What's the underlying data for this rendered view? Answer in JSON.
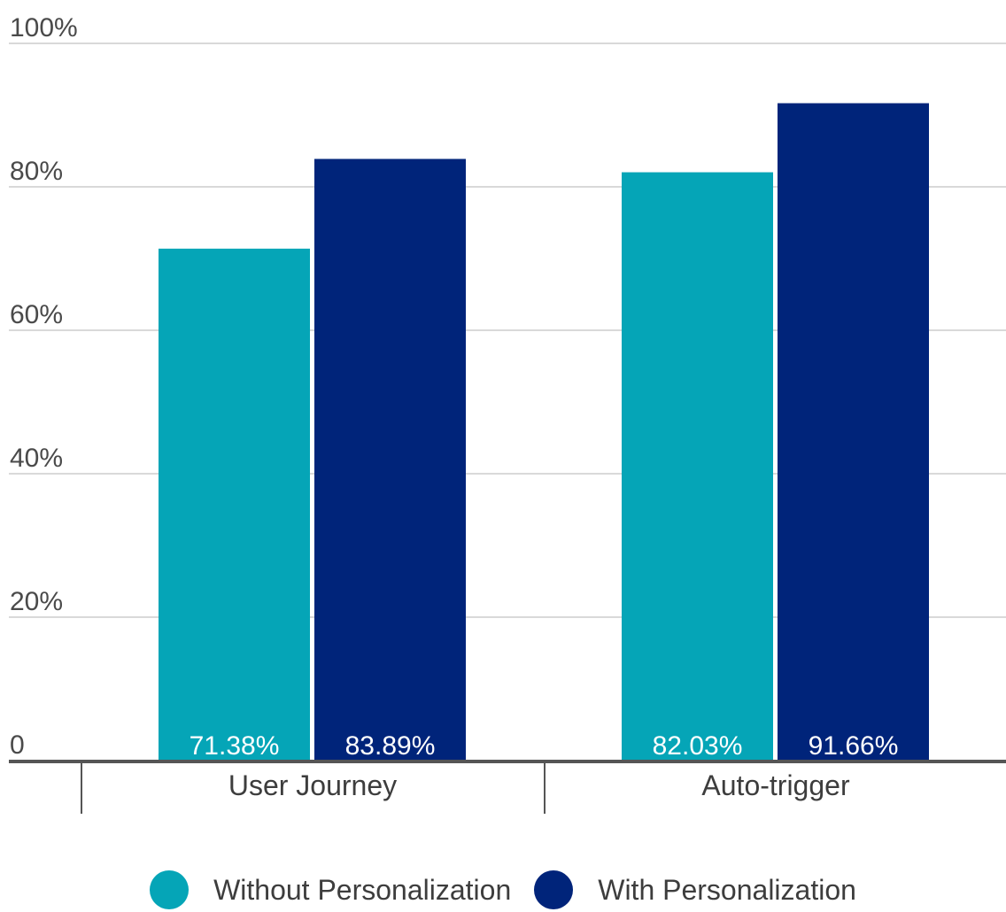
{
  "chart_data": {
    "type": "bar",
    "categories": [
      "User Journey",
      "Auto-trigger"
    ],
    "series": [
      {
        "name": "Without Personalization",
        "values": [
          71.38,
          82.03
        ],
        "labels": [
          "71.38%",
          "82.03%"
        ],
        "color": "#05A5B7"
      },
      {
        "name": "With Personalization",
        "values": [
          83.89,
          91.66
        ],
        "labels": [
          "83.89%",
          "91.66%"
        ],
        "color": "#00247A"
      }
    ],
    "yticks": [
      0,
      20,
      40,
      60,
      80,
      100
    ],
    "ytick_labels": [
      "0",
      "20%",
      "40%",
      "60%",
      "80%",
      "100%"
    ],
    "ylim": [
      0,
      100
    ],
    "grid": true,
    "legend_position": "bottom-center",
    "title": "",
    "xlabel": "",
    "ylabel": ""
  }
}
